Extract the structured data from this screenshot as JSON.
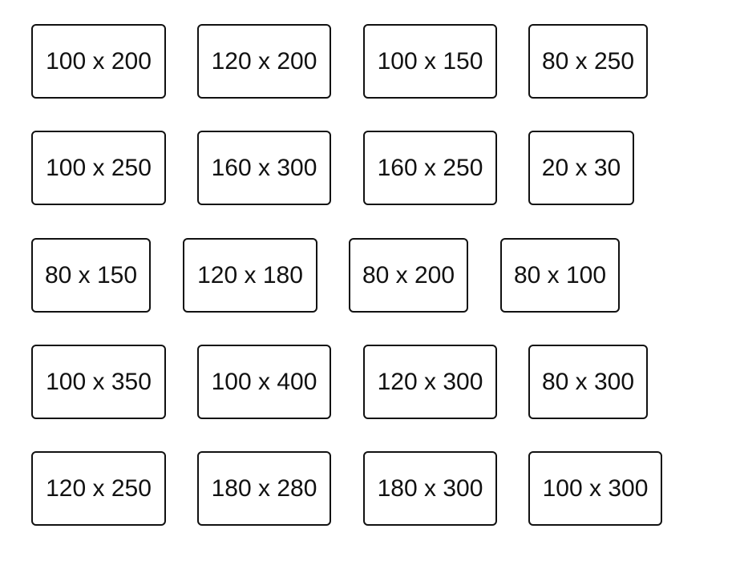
{
  "rows": [
    [
      "100 x 200",
      "120 x 200",
      "100 x 150",
      "80 x 250"
    ],
    [
      "100 x 250",
      "160 x 300",
      "160 x 250",
      "20 x 30"
    ],
    [
      "80 x 150",
      "120 x 180",
      "80 x 200",
      "80 x 100"
    ],
    [
      "100 x 350",
      "100 x 400",
      "120 x 300",
      "80 x 300"
    ],
    [
      "120 x 250",
      "180 x 280",
      "180 x 300",
      "100 x 300"
    ]
  ]
}
